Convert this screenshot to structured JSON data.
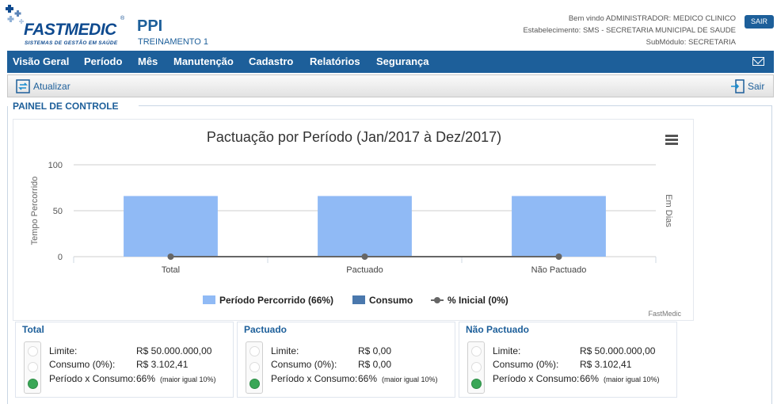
{
  "header": {
    "logo_text": "FASTMEDIC",
    "logo_sub": "SISTEMAS DE GESTÃO EM SAÚDE",
    "logo_reg": "®",
    "app_title": "PPI",
    "app_sub": "TREINAMENTO 1",
    "welcome": "Bem vindo ADMINISTRADOR: MEDICO CLINICO",
    "establishment": "Estabelecimento: SMS - SECRETARIA MUNICIPAL DE SAUDE",
    "submodule": "SubMódulo: SECRETARIA",
    "logout_label": "SAIR"
  },
  "nav": {
    "items": [
      "Visão Geral",
      "Período",
      "Mês",
      "Manutenção",
      "Cadastro",
      "Relatórios",
      "Segurança"
    ],
    "mail_icon": "mail-icon"
  },
  "toolbar": {
    "refresh_label": "Atualizar",
    "exit_label": "Sair"
  },
  "panel": {
    "title": "PAINEL DE CONTROLE"
  },
  "chart_data": {
    "type": "bar",
    "title": "Pactuação por Período (Jan/2017 à Dez/2017)",
    "categories": [
      "Total",
      "Pactuado",
      "Não Pactuado"
    ],
    "series": [
      {
        "name": "Período Percorrido (66%)",
        "values": [
          66,
          66,
          66
        ],
        "color": "#90baf5",
        "kind": "bar"
      },
      {
        "name": "Consumo",
        "values": [
          0,
          0,
          0
        ],
        "color": "#4a78ad",
        "kind": "bar"
      },
      {
        "name": "% Inicial (0%)",
        "values": [
          0,
          0,
          0
        ],
        "color": "#666666",
        "kind": "line"
      }
    ],
    "ylabel": "Tempo Percorrido",
    "y2label": "Em Dias",
    "yticks": [
      0,
      50,
      100
    ],
    "ylim": [
      0,
      100
    ],
    "grid": true,
    "legend": "bottom",
    "credit": "FastMedic"
  },
  "cards": [
    {
      "title": "Total",
      "limite_label": "Limite:",
      "limite_value": "R$ 50.000.000,00",
      "consumo_label": "Consumo (0%):",
      "consumo_value": "R$ 3.102,41",
      "periodo_label": "Período x Consumo:",
      "periodo_value": "66%",
      "periodo_note": "(maior igual 10%)",
      "light_state": "green"
    },
    {
      "title": "Pactuado",
      "limite_label": "Limite:",
      "limite_value": "R$ 0,00",
      "consumo_label": "Consumo (0%):",
      "consumo_value": "R$ 0,00",
      "periodo_label": "Período x Consumo:",
      "periodo_value": "66%",
      "periodo_note": "(maior igual 10%)",
      "light_state": "green"
    },
    {
      "title": "Não Pactuado",
      "limite_label": "Limite:",
      "limite_value": "R$ 50.000.000,00",
      "consumo_label": "Consumo (0%):",
      "consumo_value": "R$ 3.102,41",
      "periodo_label": "Período x Consumo:",
      "periodo_value": "66%",
      "periodo_note": "(maior igual 10%)",
      "light_state": "green"
    }
  ]
}
